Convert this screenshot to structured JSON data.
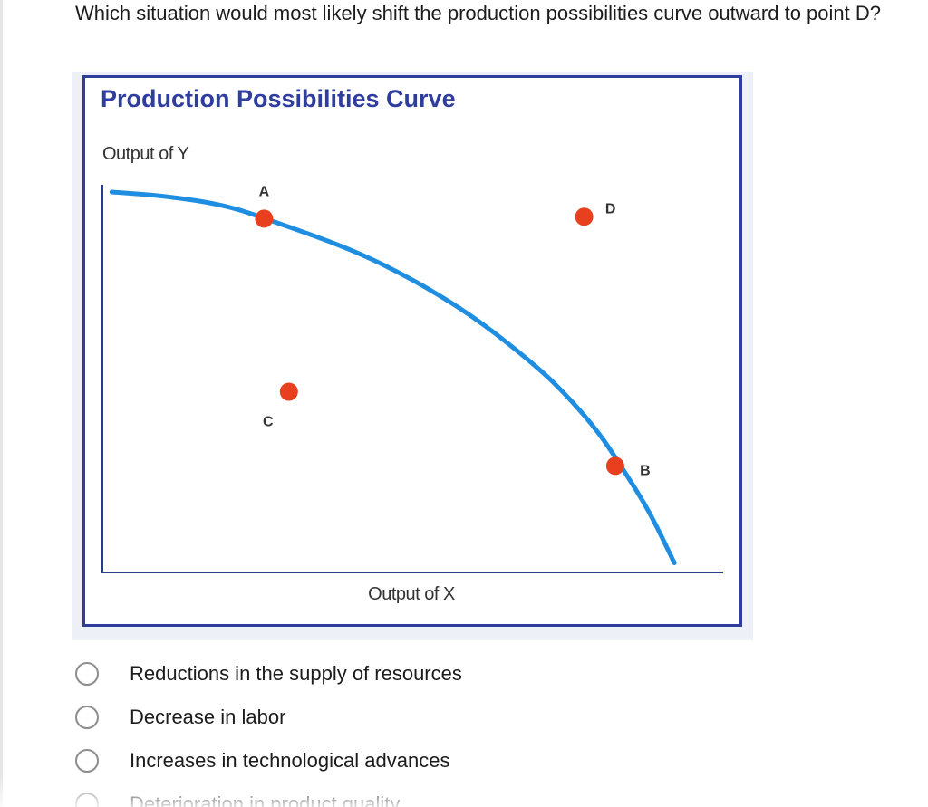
{
  "question": {
    "text": "Which situation would most likely shift the production possibilities curve outward to point D?"
  },
  "figure": {
    "title": "Production Possibilities Curve",
    "y_label": "Output of Y",
    "x_label": "Output of X",
    "colors": {
      "title": "#2f3d9f",
      "frame": "#2f3d9f",
      "curve": "#1f8ee0",
      "points": "#e8401f",
      "axes": "#2a3a8f"
    }
  },
  "chart_data": {
    "type": "line",
    "title": "Production Possibilities Curve",
    "xlabel": "Output of X",
    "ylabel": "Output of Y",
    "xlim": [
      0,
      100
    ],
    "ylim": [
      0,
      100
    ],
    "grid": false,
    "series": [
      {
        "x": [
          1.5,
          10,
          20,
          28,
          40,
          50,
          60,
          70,
          75,
          80,
          84,
          88,
          92
        ],
        "y": [
          100,
          99,
          96.5,
          92,
          85,
          77,
          67,
          54,
          46,
          36.5,
          26.5,
          16,
          2.5
        ]
      }
    ],
    "points": [
      {
        "label": "A",
        "x": 26,
        "y": 93
      },
      {
        "label": "B",
        "x": 82.5,
        "y": 28
      },
      {
        "label": "C",
        "x": 30,
        "y": 47.5
      },
      {
        "label": "D",
        "x": 77.5,
        "y": 93.5
      }
    ]
  },
  "answer_options": [
    {
      "label": "Reductions in the supply of resources"
    },
    {
      "label": "Decrease in labor"
    },
    {
      "label": "Increases in technological advances"
    },
    {
      "label": "Deterioration in product quality"
    }
  ]
}
